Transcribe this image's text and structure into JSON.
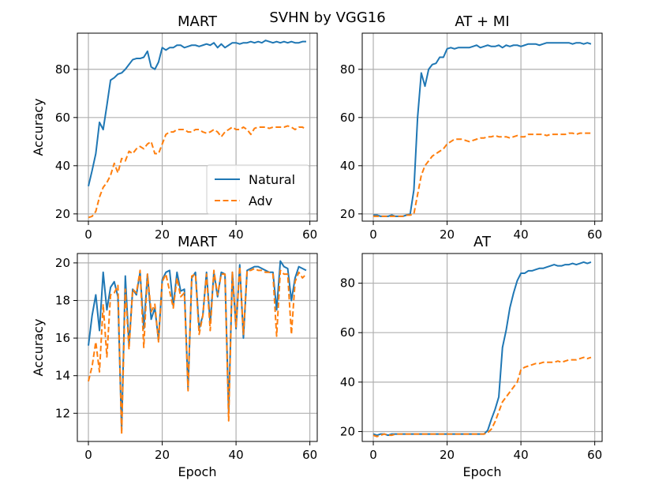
{
  "suptitle": "SVHN by VGG16",
  "colors": {
    "natural": "#1f77b4",
    "adv": "#ff7f0e",
    "grid": "#b0b0b0"
  },
  "chart_data": [
    {
      "type": "line",
      "title": "MART",
      "xlabel": "",
      "ylabel": "Accuracy",
      "xlim": [
        -3,
        62
      ],
      "ylim": [
        17,
        95
      ],
      "xticks": [
        0,
        20,
        40,
        60
      ],
      "yticks": [
        20,
        40,
        60,
        80
      ],
      "grid": true,
      "legend": {
        "placement": "lower-right",
        "entries": [
          "Natural",
          "Adv"
        ]
      },
      "series": [
        {
          "name": "Natural",
          "style": "solid",
          "values": [
            31.5,
            38,
            45,
            58,
            55,
            65,
            75.5,
            76.5,
            78,
            78.5,
            80,
            82,
            84,
            84.5,
            84.5,
            85,
            87.5,
            81,
            80,
            83,
            89,
            88,
            89,
            89,
            90,
            90,
            89,
            89.5,
            90,
            90,
            89.5,
            90,
            90.5,
            90,
            91,
            89,
            90.5,
            89,
            90,
            91,
            91,
            90.5,
            91,
            91,
            91.5,
            91,
            91.5,
            91,
            92,
            91.5,
            91,
            91.5,
            91,
            91.5,
            91,
            91.5,
            91,
            91,
            91.5,
            91.5
          ]
        },
        {
          "name": "Adv",
          "style": "dashed",
          "values": [
            18.5,
            19,
            21,
            27,
            31,
            33,
            36,
            41,
            37,
            43,
            42,
            46,
            45,
            47,
            48,
            47,
            49,
            50,
            45,
            45,
            49,
            53,
            54,
            54,
            55,
            55,
            55,
            54,
            54,
            55,
            55,
            54,
            53.5,
            54,
            55,
            54,
            52,
            54,
            55,
            56,
            55,
            55,
            56,
            55,
            53,
            55.5,
            56,
            56,
            56,
            55.5,
            56,
            56,
            56,
            56,
            56.5,
            56,
            55,
            56,
            56,
            55
          ]
        }
      ]
    },
    {
      "type": "line",
      "title": "AT + MI",
      "xlabel": "",
      "ylabel": "",
      "xlim": [
        -3,
        62
      ],
      "ylim": [
        17,
        95
      ],
      "xticks": [
        0,
        20,
        40,
        60
      ],
      "yticks": [
        20,
        40,
        60,
        80
      ],
      "grid": true,
      "series": [
        {
          "name": "Natural",
          "style": "solid",
          "values": [
            19.5,
            19.5,
            19,
            19,
            19,
            19.5,
            19,
            19,
            19,
            19.5,
            20,
            30,
            60,
            78.5,
            73,
            80,
            82,
            82.5,
            85,
            85,
            88.5,
            89,
            88.5,
            89,
            89,
            89,
            89,
            89.5,
            90,
            89,
            89.5,
            90,
            89.5,
            89.5,
            90,
            89,
            90,
            89.5,
            90,
            90,
            89.5,
            90,
            90.5,
            90.5,
            90.5,
            90,
            90.5,
            91,
            91,
            91,
            91,
            91,
            91,
            91,
            90.5,
            91,
            91,
            90.5,
            91,
            90.5
          ]
        },
        {
          "name": "Adv",
          "style": "dashed",
          "values": [
            19,
            19,
            19,
            19,
            19,
            19,
            19,
            19,
            19,
            19.5,
            19.5,
            20,
            28,
            36,
            40,
            42,
            44,
            45,
            46,
            47,
            49,
            50,
            51,
            51,
            51,
            50.5,
            50,
            50.5,
            51,
            51.5,
            51.5,
            52,
            52,
            52.5,
            52,
            52,
            52,
            51.5,
            52,
            52.5,
            52,
            52,
            53,
            53,
            53,
            53,
            53,
            52.5,
            53,
            53,
            53,
            53,
            53,
            53.5,
            53.5,
            53,
            53.5,
            53.5,
            53.5,
            53.5
          ]
        }
      ]
    },
    {
      "type": "line",
      "title": "MART",
      "xlabel": "Epoch",
      "ylabel": "Accuracy",
      "xlim": [
        -3,
        62
      ],
      "ylim": [
        10.5,
        20.5
      ],
      "xticks": [
        0,
        20,
        40,
        60
      ],
      "yticks": [
        12,
        14,
        16,
        18,
        20
      ],
      "grid": true,
      "series": [
        {
          "name": "Natural",
          "style": "solid",
          "values": [
            15.6,
            17.2,
            18.3,
            16.4,
            19.5,
            17.5,
            18.7,
            19,
            18.2,
            11.1,
            19.3,
            15.6,
            18.6,
            18.3,
            19.5,
            16.5,
            19.4,
            17,
            17.6,
            15.9,
            19.1,
            19.5,
            19.6,
            17.7,
            19.5,
            18.5,
            18.6,
            13.3,
            19.2,
            19.5,
            16.5,
            17.2,
            19.5,
            16.8,
            19.5,
            18.2,
            19.5,
            19.4,
            12.1,
            19.5,
            16.5,
            19.9,
            16,
            19.6,
            19.7,
            19.8,
            19.8,
            19.7,
            19.6,
            19.5,
            19.5,
            17.5,
            20.1,
            19.8,
            19.7,
            18,
            19.2,
            19.8,
            19.7,
            19.6
          ]
        },
        {
          "name": "Adv",
          "style": "dashed",
          "values": [
            13.7,
            14.5,
            15.8,
            14.2,
            17.8,
            15,
            18.3,
            18.4,
            18.8,
            10.9,
            18.6,
            15.4,
            18.6,
            18.4,
            19.6,
            15.5,
            19.4,
            17.4,
            17.8,
            15.8,
            19,
            19.4,
            18.5,
            17.6,
            19.2,
            18.2,
            18.4,
            13.2,
            19.3,
            19.4,
            16.2,
            17.2,
            19.4,
            16.4,
            19.6,
            18.3,
            19.4,
            19.4,
            11.6,
            19.5,
            16.6,
            19.8,
            16.2,
            19.6,
            19.6,
            19.7,
            19.6,
            19.6,
            19.5,
            19.5,
            19.4,
            16.1,
            19.6,
            19.4,
            19.4,
            16.2,
            19,
            19.5,
            19.2,
            19.4
          ]
        }
      ]
    },
    {
      "type": "line",
      "title": "AT",
      "xlabel": "Epoch",
      "ylabel": "",
      "xlim": [
        -3,
        62
      ],
      "ylim": [
        16,
        92
      ],
      "xticks": [
        0,
        20,
        40,
        60
      ],
      "yticks": [
        20,
        40,
        60,
        80
      ],
      "grid": true,
      "series": [
        {
          "name": "Natural",
          "style": "solid",
          "values": [
            19,
            18.5,
            19,
            19,
            18.5,
            19,
            19,
            19,
            19,
            19,
            19,
            19,
            19,
            19,
            19,
            19,
            19,
            19,
            19,
            19,
            19,
            19,
            19,
            19,
            19,
            19,
            19,
            19,
            19,
            19,
            19,
            20.5,
            25,
            29,
            34,
            54,
            61,
            70,
            76,
            81,
            84,
            84,
            85,
            85,
            85.5,
            86,
            86,
            86.5,
            87,
            87.5,
            87,
            87,
            87.5,
            87.5,
            88,
            87.5,
            88,
            88.5,
            88,
            88.5
          ]
        },
        {
          "name": "Adv",
          "style": "dashed",
          "values": [
            18.5,
            18,
            18.5,
            19,
            18.5,
            18.5,
            19,
            19,
            19,
            19,
            19,
            19,
            19,
            19,
            19,
            19,
            19,
            19,
            19,
            19,
            19,
            19,
            19,
            19,
            19,
            19,
            19,
            19,
            19,
            19,
            19,
            19.5,
            21,
            24,
            28,
            32,
            34,
            36,
            38,
            40,
            45,
            46,
            46.5,
            47,
            47.5,
            47.5,
            48,
            48,
            48,
            48,
            48.5,
            48,
            48.5,
            49,
            49,
            49,
            49.5,
            50,
            49.5,
            50
          ]
        }
      ]
    }
  ]
}
